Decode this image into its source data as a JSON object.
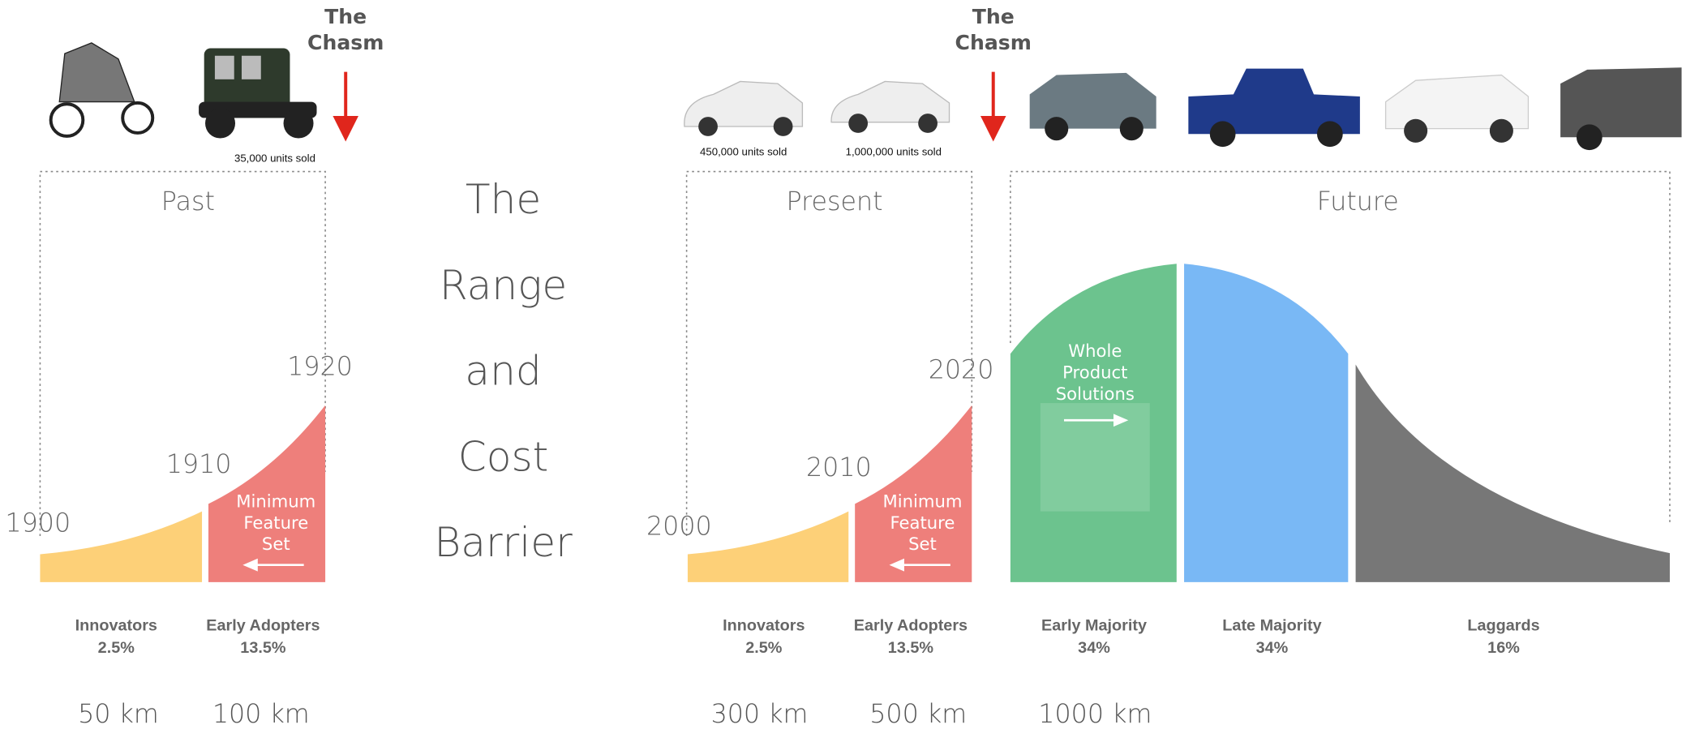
{
  "title_words": [
    "The",
    "Range",
    "and",
    "Cost",
    "Barrier"
  ],
  "past": {
    "chasm": [
      "The",
      "Chasm"
    ],
    "sales": [
      "35,000 units sold"
    ],
    "heading": "Past",
    "years": [
      "1900",
      "1910",
      "1920"
    ],
    "callout": [
      "Minimum",
      "Feature",
      "Set"
    ],
    "segments": [
      {
        "name": "Innovators",
        "share": "2.5%",
        "range": "50 km"
      },
      {
        "name": "Early Adopters",
        "share": "13.5%",
        "range": "100 km"
      }
    ]
  },
  "present": {
    "chasm": [
      "The",
      "Chasm"
    ],
    "sales": [
      "450,000 units sold",
      "1,000,000 units sold"
    ],
    "heading": "Present",
    "years": [
      "2000",
      "2010",
      "2020"
    ],
    "callout": [
      "Minimum",
      "Feature",
      "Set"
    ],
    "segments": [
      {
        "name": "Innovators",
        "share": "2.5%",
        "range": "300 km"
      },
      {
        "name": "Early Adopters",
        "share": "13.5%",
        "range": "500 km"
      }
    ]
  },
  "future": {
    "heading": "Future",
    "callout": [
      "Whole",
      "Product",
      "Solutions"
    ],
    "segments": [
      {
        "name": "Early Majority",
        "share": "34%",
        "range": "1000 km"
      },
      {
        "name": "Late Majority",
        "share": "34%"
      },
      {
        "name": "Laggards",
        "share": "16%"
      }
    ]
  }
}
